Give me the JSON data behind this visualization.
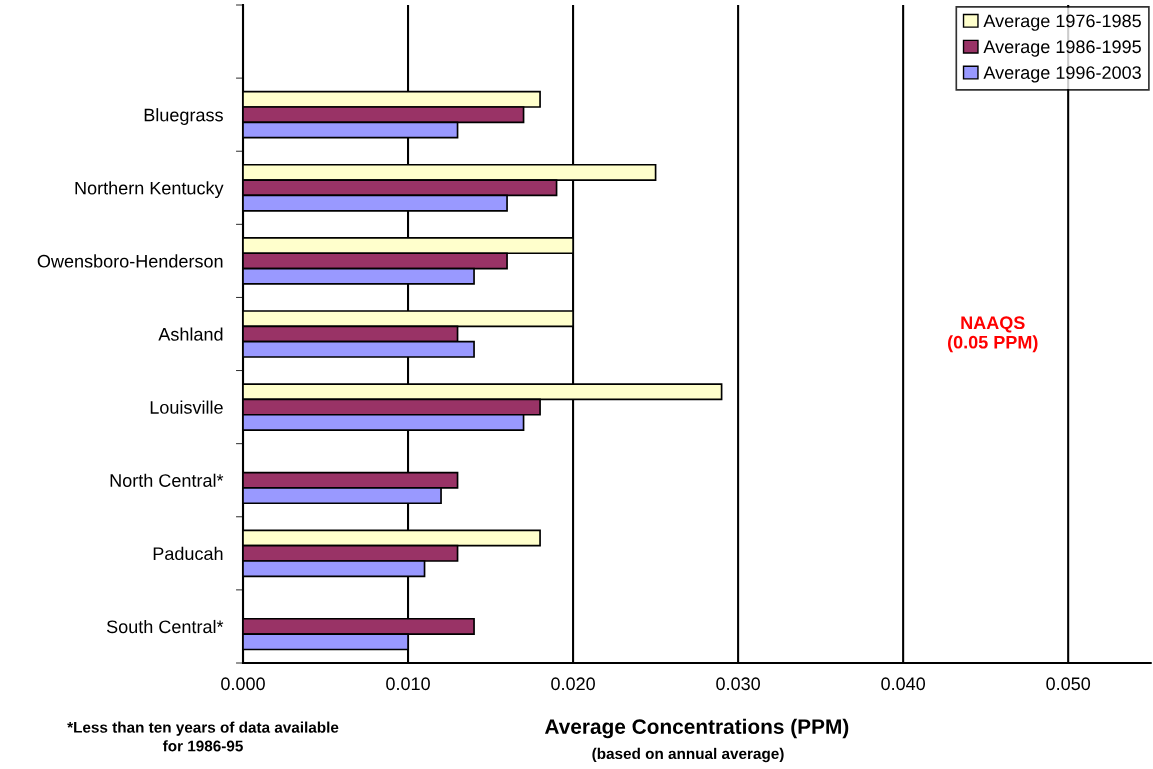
{
  "chart_data": {
    "type": "bar",
    "orientation": "horizontal",
    "categories": [
      null,
      "Bluegrass",
      "Northern Kentucky",
      "Owensboro-Henderson",
      "Ashland",
      "Louisville",
      "North Central*",
      "Paducah",
      "South Central*"
    ],
    "series": [
      {
        "name": "Average 1976-1985",
        "color": "#ffffcc",
        "values": [
          null,
          0.018,
          0.025,
          0.02,
          0.02,
          0.029,
          null,
          0.018,
          null
        ]
      },
      {
        "name": "Average 1986-1995",
        "color": "#993366",
        "values": [
          null,
          0.017,
          0.019,
          0.016,
          0.013,
          0.018,
          0.013,
          0.013,
          0.014
        ]
      },
      {
        "name": "Average 1996-2003",
        "color": "#9999ff",
        "values": [
          null,
          0.013,
          0.016,
          0.014,
          0.014,
          0.017,
          0.012,
          0.011,
          0.01
        ]
      }
    ],
    "xlabel": "Average Concentrations (PPM)",
    "xlim": [
      0,
      0.055
    ],
    "xticks": [
      {
        "value": 0,
        "label": "0.000"
      },
      {
        "value": 0.01,
        "label": "0.010"
      },
      {
        "value": 0.02,
        "label": "0.020"
      },
      {
        "value": 0.03,
        "label": "0.030"
      },
      {
        "value": 0.04,
        "label": "0.040"
      },
      {
        "value": 0.05,
        "label": "0.050"
      }
    ],
    "grid": "x",
    "legend": "top right",
    "annotations": [
      "(based on annual average)",
      "*Less than ten years of data available\nfor 1986-95",
      "NAAQS\n(0.05 PPM)"
    ]
  }
}
